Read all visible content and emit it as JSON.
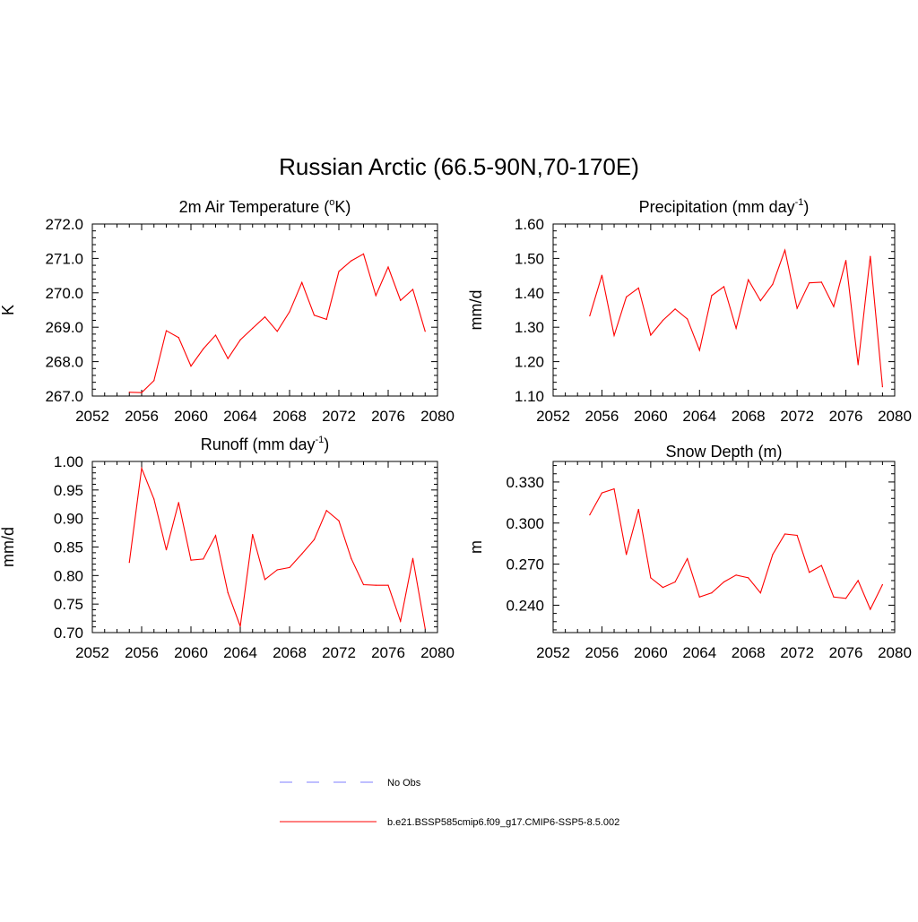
{
  "title": "Russian Arctic (66.5-90N,70-170E)",
  "colors": {
    "model": "#ff0000",
    "obs": "#9999ff",
    "axis": "#000000"
  },
  "legend": {
    "obs_label": "No Obs",
    "model_label": "b.e21.BSSP585cmip6.f09_g17.CMIP6-SSP5-8.5.002"
  },
  "chart_data": [
    {
      "type": "line",
      "title_parts": [
        "2m Air Temperature (",
        "o",
        "K)"
      ],
      "title_sup_index": 1,
      "ylabel": "K",
      "xlim": [
        2052,
        2080
      ],
      "ylim": [
        267.0,
        272.0
      ],
      "xticks": [
        2052,
        2056,
        2060,
        2064,
        2068,
        2072,
        2076,
        2080
      ],
      "xtick_labels": [
        "2052",
        "2056",
        "2060",
        "2064",
        "2068",
        "2072",
        "2076",
        "2080"
      ],
      "yticks": [
        267.0,
        268.0,
        269.0,
        270.0,
        271.0,
        272.0
      ],
      "ytick_labels": [
        "267.0",
        "268.0",
        "269.0",
        "270.0",
        "271.0",
        "272.0"
      ],
      "x": [
        2055,
        2056,
        2057,
        2058,
        2059,
        2060,
        2061,
        2062,
        2063,
        2064,
        2065,
        2066,
        2067,
        2068,
        2069,
        2070,
        2071,
        2072,
        2073,
        2074,
        2075,
        2076,
        2077,
        2078,
        2079
      ],
      "series": [
        {
          "values": [
            267.11,
            267.1,
            267.45,
            268.9,
            268.7,
            267.87,
            268.37,
            268.77,
            268.09,
            268.63,
            268.97,
            269.3,
            268.88,
            269.45,
            270.3,
            269.35,
            269.23,
            270.62,
            270.93,
            271.13,
            269.92,
            270.75,
            269.78,
            270.1,
            268.88
          ]
        }
      ]
    },
    {
      "type": "line",
      "title_parts": [
        "Precipitation (mm day",
        "-1",
        ")"
      ],
      "title_sup_index": 1,
      "ylabel": "mm/d",
      "xlim": [
        2052,
        2080
      ],
      "ylim": [
        1.1,
        1.6
      ],
      "xticks": [
        2052,
        2056,
        2060,
        2064,
        2068,
        2072,
        2076,
        2080
      ],
      "xtick_labels": [
        "2052",
        "2056",
        "2060",
        "2064",
        "2068",
        "2072",
        "2076",
        "2080"
      ],
      "yticks": [
        1.1,
        1.2,
        1.3,
        1.4,
        1.5,
        1.6
      ],
      "ytick_labels": [
        "1.10",
        "1.20",
        "1.30",
        "1.40",
        "1.50",
        "1.60"
      ],
      "x": [
        2055,
        2056,
        2057,
        2058,
        2059,
        2060,
        2061,
        2062,
        2063,
        2064,
        2065,
        2066,
        2067,
        2068,
        2069,
        2070,
        2071,
        2072,
        2073,
        2074,
        2075,
        2076,
        2077,
        2078,
        2079
      ],
      "series": [
        {
          "values": [
            1.333,
            1.451,
            1.276,
            1.388,
            1.414,
            1.277,
            1.32,
            1.353,
            1.324,
            1.233,
            1.392,
            1.418,
            1.297,
            1.438,
            1.377,
            1.425,
            1.524,
            1.355,
            1.429,
            1.431,
            1.36,
            1.494,
            1.191,
            1.506,
            1.127
          ]
        }
      ]
    },
    {
      "type": "line",
      "title_parts": [
        "Runoff (mm day",
        "-1",
        ")"
      ],
      "title_sup_index": 1,
      "ylabel": "mm/d",
      "xlim": [
        2052,
        2080
      ],
      "ylim": [
        0.7,
        1.0
      ],
      "xticks": [
        2052,
        2056,
        2060,
        2064,
        2068,
        2072,
        2076,
        2080
      ],
      "xtick_labels": [
        "2052",
        "2056",
        "2060",
        "2064",
        "2068",
        "2072",
        "2076",
        "2080"
      ],
      "yticks": [
        0.7,
        0.75,
        0.8,
        0.85,
        0.9,
        0.95,
        1.0
      ],
      "ytick_labels": [
        "0.70",
        "0.75",
        "0.80",
        "0.85",
        "0.90",
        "0.95",
        "1.00"
      ],
      "x": [
        2055,
        2056,
        2057,
        2058,
        2059,
        2060,
        2061,
        2062,
        2063,
        2064,
        2065,
        2066,
        2067,
        2068,
        2069,
        2070,
        2071,
        2072,
        2073,
        2074,
        2075,
        2076,
        2077,
        2078,
        2079
      ],
      "series": [
        {
          "values": [
            0.823,
            0.988,
            0.934,
            0.845,
            0.928,
            0.827,
            0.829,
            0.87,
            0.77,
            0.711,
            0.872,
            0.793,
            0.81,
            0.814,
            0.838,
            0.863,
            0.914,
            0.896,
            0.83,
            0.784,
            0.783,
            0.783,
            0.72,
            0.83,
            0.707
          ]
        }
      ]
    },
    {
      "type": "line",
      "title_parts": [
        "Snow Depth (m)"
      ],
      "title_sup_index": -1,
      "ylabel": "m",
      "xlim": [
        2052,
        2080
      ],
      "ylim": [
        0.22,
        0.345
      ],
      "xticks": [
        2052,
        2056,
        2060,
        2064,
        2068,
        2072,
        2076,
        2080
      ],
      "xtick_labels": [
        "2052",
        "2056",
        "2060",
        "2064",
        "2068",
        "2072",
        "2076",
        "2080"
      ],
      "yticks": [
        0.24,
        0.27,
        0.3,
        0.33
      ],
      "ytick_labels": [
        "0.240",
        "0.270",
        "0.300",
        "0.330"
      ],
      "x": [
        2055,
        2056,
        2057,
        2058,
        2059,
        2060,
        2061,
        2062,
        2063,
        2064,
        2065,
        2066,
        2067,
        2068,
        2069,
        2070,
        2071,
        2072,
        2073,
        2074,
        2075,
        2076,
        2077,
        2078,
        2079
      ],
      "series": [
        {
          "values": [
            0.306,
            0.322,
            0.325,
            0.277,
            0.31,
            0.26,
            0.253,
            0.257,
            0.274,
            0.246,
            0.249,
            0.257,
            0.262,
            0.26,
            0.249,
            0.277,
            0.292,
            0.291,
            0.264,
            0.269,
            0.246,
            0.245,
            0.258,
            0.237,
            0.255
          ]
        }
      ]
    }
  ]
}
